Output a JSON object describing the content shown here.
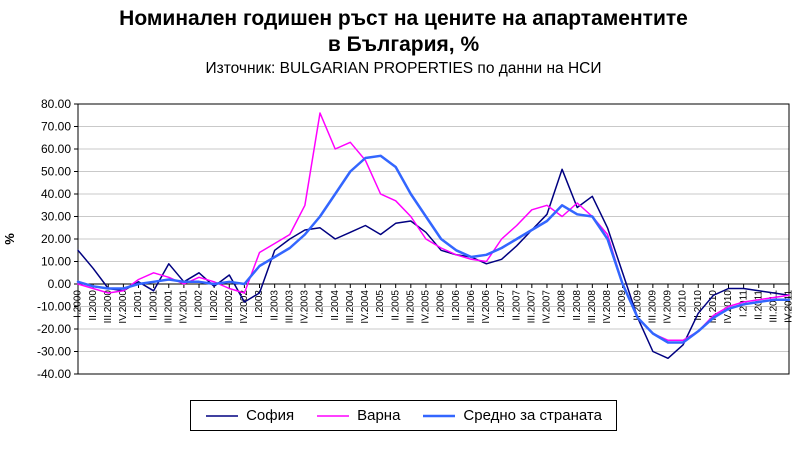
{
  "chart": {
    "title": "Номинален годишен ръст на цените на апартаментите в България, %",
    "subtitle": "Източник: BULGARIAN PROPERTIES по данни на НСИ"
  },
  "chart_data": {
    "type": "line",
    "title": "Номинален годишен ръст на цените на апартаментите в България, %",
    "subtitle": "Източник: BULGARIAN PROPERTIES по данни на НСИ",
    "xlabel": "",
    "ylabel": "%",
    "ylim": [
      -40,
      80
    ],
    "ytick_step": 10,
    "grid": true,
    "grid_color": "#C9C9C9",
    "legend_position": "bottom",
    "x": [
      "I.2000",
      "II.2000",
      "III.2000",
      "IV.2000",
      "I.2001",
      "II.2001",
      "III.2001",
      "IV.2001",
      "I.2002",
      "II.2002",
      "III.2002",
      "IV.2002",
      "I.2003",
      "II.2003",
      "III.2003",
      "IV.2003",
      "I.2004",
      "II.2004",
      "III.2004",
      "IV.2004",
      "I.2005",
      "II.2005",
      "III.2005",
      "IV.2005",
      "I.2006",
      "II.2006",
      "III.2006",
      "IV.2006",
      "I.2007",
      "II.2007",
      "III.2007",
      "IV.2007",
      "I.2008",
      "II.2008",
      "III.2008",
      "IV.2008",
      "I.2009",
      "II.2009",
      "III.2009",
      "IV.2009",
      "I.2010",
      "II.2010",
      "III.2010",
      "IV.2010",
      "I.2011",
      "II.2011",
      "III.2011",
      "IV.2011"
    ],
    "series": [
      {
        "name": "София",
        "color": "#000080",
        "width": 1.5,
        "values": [
          15,
          7,
          -2,
          -3,
          1,
          -3,
          9,
          1,
          5,
          -1,
          4,
          -8,
          -4,
          15,
          20,
          24,
          25,
          20,
          23,
          26,
          22,
          27,
          28,
          23,
          15,
          13,
          12,
          9,
          11,
          17,
          24,
          31,
          51,
          34,
          39,
          25,
          5,
          -15,
          -30,
          -33,
          -27,
          -13,
          -5,
          -2,
          -2,
          -3,
          -4,
          -5
        ]
      },
      {
        "name": "Варна",
        "color": "#FF00FF",
        "width": 1.5,
        "values": [
          0,
          -2,
          -4,
          -3,
          2,
          5,
          3,
          0,
          3,
          1,
          -2,
          -4,
          14,
          18,
          22,
          35,
          76,
          60,
          63,
          55,
          40,
          37,
          30,
          20,
          16,
          13,
          11,
          10,
          20,
          26,
          33,
          35,
          30,
          36,
          30,
          22,
          0,
          -15,
          -22,
          -25,
          -25,
          -21,
          -14,
          -10,
          -8,
          -7,
          -6,
          -5
        ]
      },
      {
        "name": "Средно за страната",
        "color": "#3366FF",
        "width": 2.5,
        "values": [
          1,
          -1,
          -2,
          -2,
          0,
          1,
          2,
          1,
          1,
          0,
          1,
          0,
          8,
          12,
          16,
          22,
          30,
          40,
          50,
          56,
          57,
          52,
          40,
          30,
          20,
          15,
          12,
          13,
          16,
          20,
          24,
          28,
          35,
          31,
          30,
          20,
          0,
          -15,
          -22,
          -26,
          -26,
          -21,
          -15,
          -11,
          -9,
          -8,
          -7,
          -7
        ]
      }
    ]
  }
}
